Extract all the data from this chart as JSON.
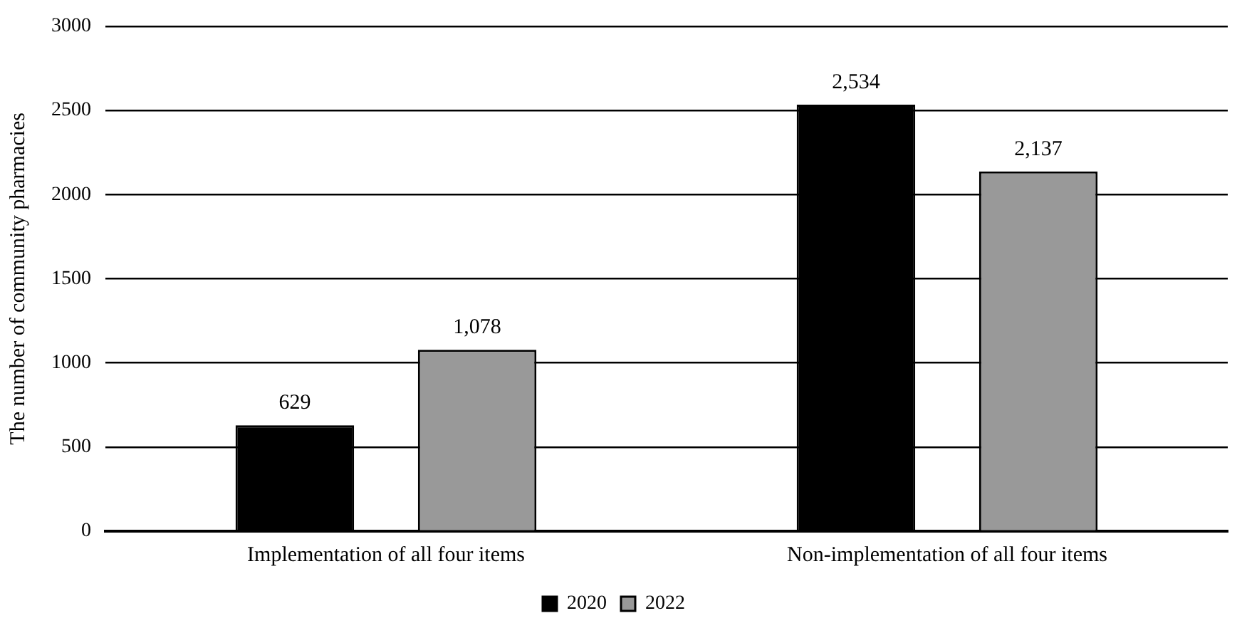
{
  "chart_data": {
    "type": "bar",
    "ylabel": "The number of community pharmacies",
    "categories": [
      "Implementation of all four items",
      "Non-implementation of all four items"
    ],
    "series": [
      {
        "name": "2020",
        "color": "#000000",
        "values": [
          629,
          2534
        ],
        "value_labels": [
          "629",
          "2,534"
        ]
      },
      {
        "name": "2022",
        "color": "#999999",
        "values": [
          1078,
          2137
        ],
        "value_labels": [
          "1,078",
          "2,137"
        ]
      }
    ],
    "ylim": [
      0,
      3000
    ],
    "yticks": [
      0,
      500,
      1000,
      1500,
      2000,
      2500,
      3000
    ],
    "grid": "y",
    "legend": "bottom"
  }
}
